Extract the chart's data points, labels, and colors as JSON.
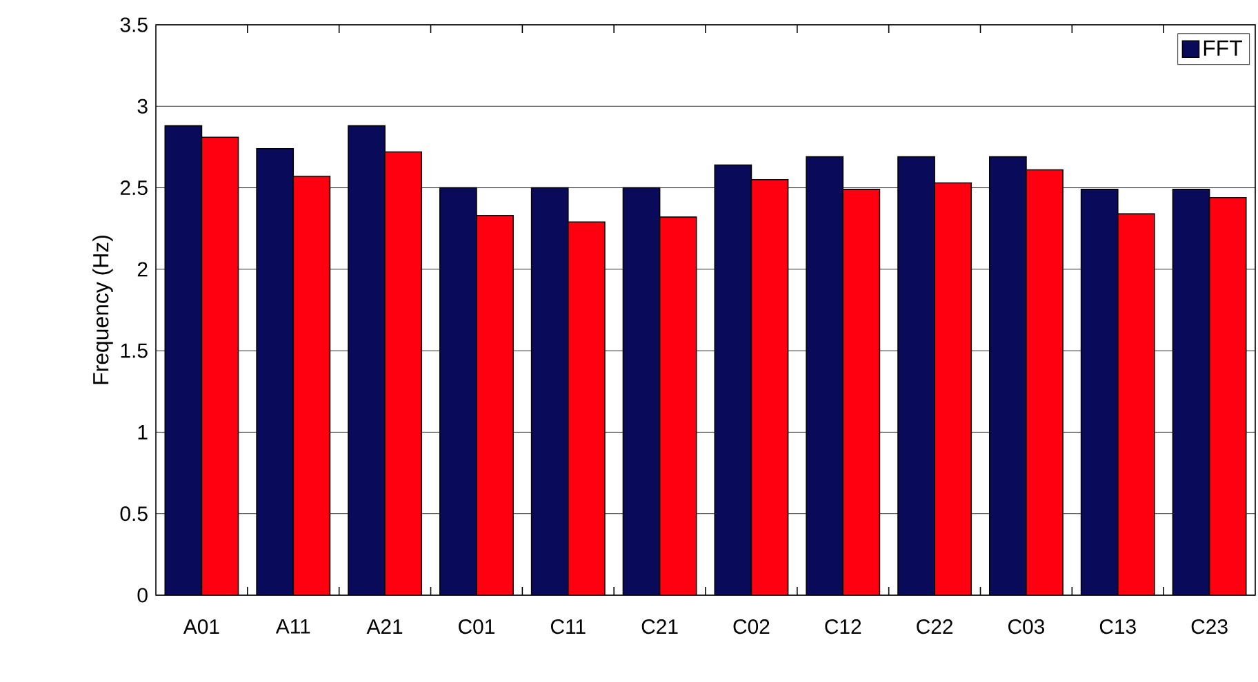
{
  "chart_data": {
    "type": "bar",
    "ylabel": "Frequency (Hz)",
    "categories": [
      "A01",
      "A11",
      "A21",
      "C01",
      "C11",
      "C21",
      "C02",
      "C12",
      "C22",
      "C03",
      "C13",
      "C23"
    ],
    "series": [
      {
        "name": "FFT",
        "color": "#0a0a5a",
        "values": [
          2.88,
          2.74,
          2.88,
          2.5,
          2.5,
          2.5,
          2.64,
          2.69,
          2.69,
          2.69,
          2.49,
          2.49
        ]
      },
      {
        "color": "#ff0010",
        "values": [
          2.81,
          2.57,
          2.72,
          2.33,
          2.29,
          2.32,
          2.55,
          2.49,
          2.53,
          2.61,
          2.34,
          2.44
        ]
      }
    ],
    "ylim": [
      0,
      3.5
    ],
    "yticks": [
      0,
      0.5,
      1,
      1.5,
      2,
      2.5,
      3,
      3.5
    ],
    "grid": "y",
    "legend": "top right"
  }
}
